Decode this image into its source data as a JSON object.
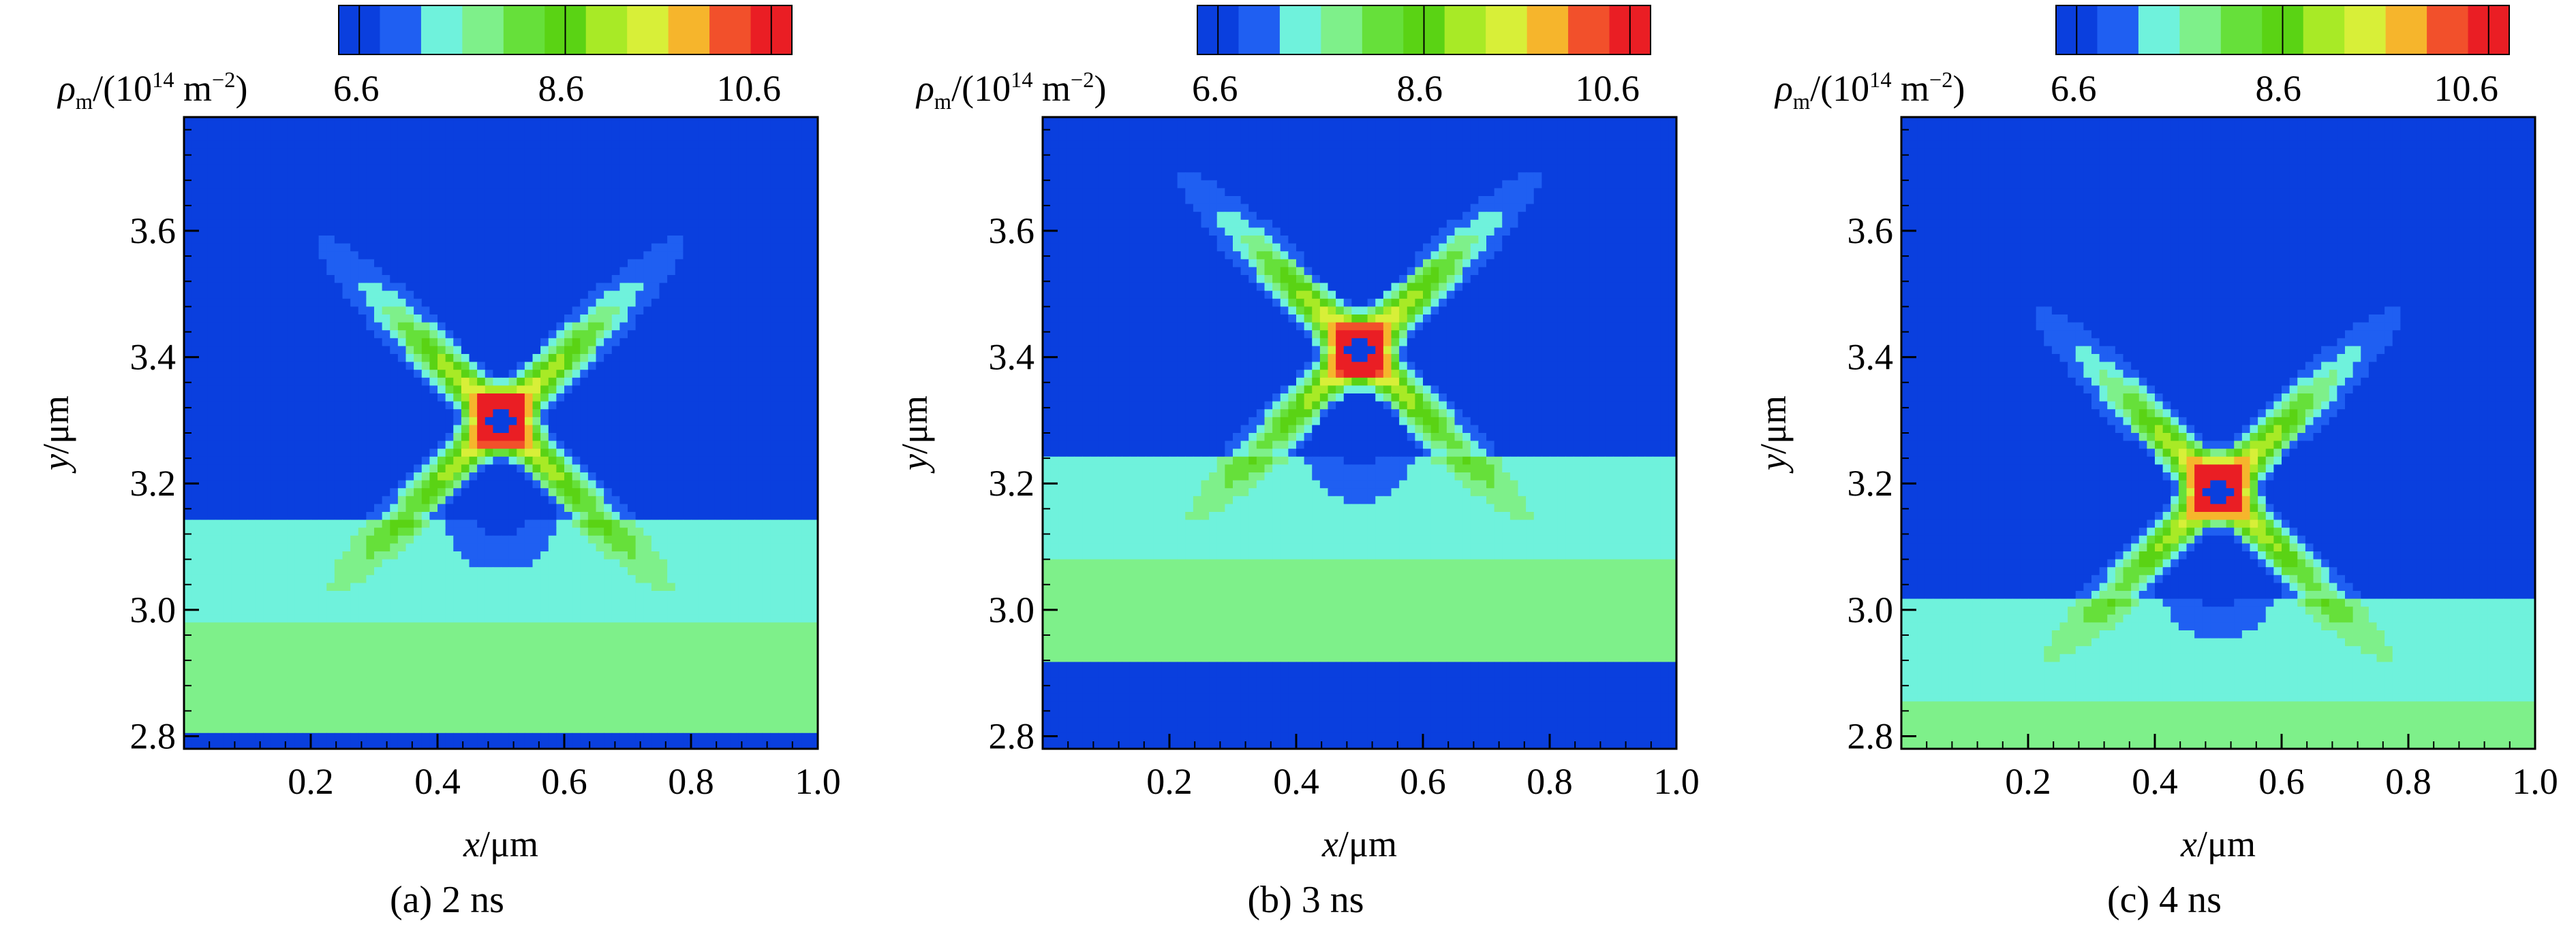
{
  "colors": {
    "levels": [
      "#0a3fde",
      "#1f5ff2",
      "#6ff2dc",
      "#7ef08a",
      "#66e03a",
      "#5ad314",
      "#a8ea26",
      "#d8ef38",
      "#f6b52c",
      "#f2502b",
      "#ea1e24"
    ],
    "background": "#ffffff"
  },
  "colorbar": {
    "quantity": "ρ",
    "quantity_sub": "m",
    "unit_prefix": "/(10",
    "unit_exp": "14",
    "unit_mid": " m",
    "unit_exp2": "−2",
    "unit_suffix": ")",
    "tick_labels": [
      "6.6",
      "8.6",
      "10.6"
    ],
    "tick_values": [
      6.6,
      8.6,
      10.6
    ]
  },
  "chart_data": [
    {
      "type": "heatmap",
      "caption": "(a) 2 ns",
      "xlabel_var": "x",
      "xlabel_unit": "/μm",
      "ylabel_var": "y",
      "ylabel_unit": "/μm",
      "xlim": [
        0.0,
        1.0
      ],
      "ylim": [
        2.78,
        3.78
      ],
      "xticks": [
        "0.2",
        "0.4",
        "0.6",
        "0.8",
        "1.0"
      ],
      "yticks": [
        "2.8",
        "3.0",
        "3.2",
        "3.4",
        "3.6"
      ],
      "dislocation_center": [
        0.5,
        3.3
      ],
      "top_dark_band_y": 3.77,
      "band_light_cyan_top_y": 3.14,
      "band_green_top_y": 2.98,
      "bottom_dark_band_y": 2.8,
      "color_range": [
        6.2,
        11.4
      ]
    },
    {
      "type": "heatmap",
      "caption": "(b) 3 ns",
      "xlabel_var": "x",
      "xlabel_unit": "/μm",
      "ylabel_var": "y",
      "ylabel_unit": "/μm",
      "xlim": [
        0.0,
        1.0
      ],
      "ylim": [
        2.78,
        3.78
      ],
      "xticks": [
        "0.2",
        "0.4",
        "0.6",
        "0.8",
        "1.0"
      ],
      "yticks": [
        "2.8",
        "3.0",
        "3.2",
        "3.4",
        "3.6"
      ],
      "dislocation_center": [
        0.5,
        3.41
      ],
      "top_dark_band_y": 3.8,
      "band_light_cyan_top_y": 3.24,
      "band_green_top_y": 3.08,
      "bottom_dark_band_y": 2.92,
      "color_range": [
        6.2,
        11.4
      ]
    },
    {
      "type": "heatmap",
      "caption": "(c) 4 ns",
      "xlabel_var": "x",
      "xlabel_unit": "/μm",
      "ylabel_var": "y",
      "ylabel_unit": "/μm",
      "xlim": [
        0.0,
        1.0
      ],
      "ylim": [
        2.78,
        3.78
      ],
      "xticks": [
        "0.2",
        "0.4",
        "0.6",
        "0.8",
        "1.0"
      ],
      "yticks": [
        "2.8",
        "3.0",
        "3.2",
        "3.4",
        "3.6"
      ],
      "dislocation_center": [
        0.5,
        3.19
      ],
      "top_dark_band_y": 3.7,
      "band_light_cyan_top_y": 3.02,
      "band_green_top_y": 2.86,
      "bottom_dark_band_y": 2.7,
      "color_range": [
        6.2,
        11.4
      ]
    }
  ]
}
